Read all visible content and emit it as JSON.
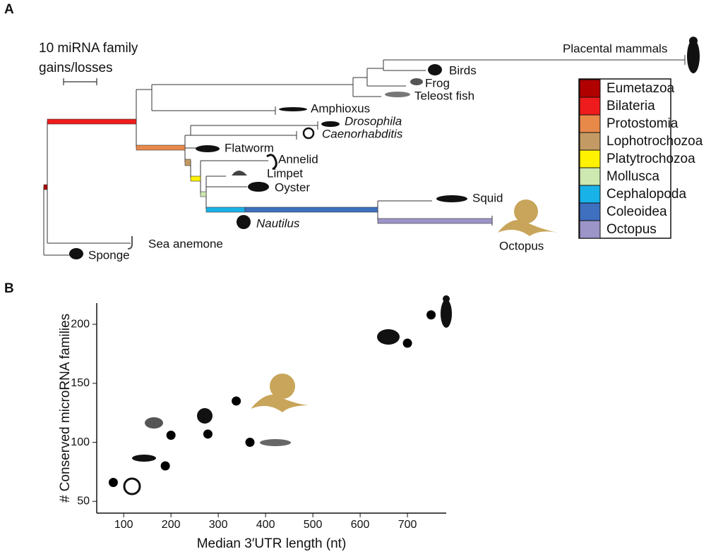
{
  "panel_a": {
    "label": "A",
    "scale_bar": [
      "10 miRNA family",
      "gains/losses"
    ],
    "taxa": [
      "Placental mammals",
      "Birds",
      "Frog",
      "Teleost fish",
      "Amphioxus",
      "Drosophila",
      "Caenorhabditis",
      "Flatworm",
      "Annelid",
      "Limpet",
      "Oyster",
      "Squid",
      "Nautilus",
      "Octopus",
      "Sea anemone",
      "Sponge"
    ],
    "legend": [
      {
        "name": "Eumetazoa",
        "color": "#b00000"
      },
      {
        "name": "Bilateria",
        "color": "#ee1c1c"
      },
      {
        "name": "Protostomia",
        "color": "#e8894a"
      },
      {
        "name": "Lophotrochozoa",
        "color": "#c49a64"
      },
      {
        "name": "Platytrochozoa",
        "color": "#fff200"
      },
      {
        "name": "Mollusca",
        "color": "#cde8b0"
      },
      {
        "name": "Cephalopoda",
        "color": "#19b2e8"
      },
      {
        "name": "Coleoidea",
        "color": "#3f70c0"
      },
      {
        "name": "Octopus",
        "color": "#9c95c8"
      }
    ]
  },
  "chart_data": {
    "type": "scatter",
    "panel_label": "B",
    "xlabel": "Median 3′UTR length (nt)",
    "ylabel": "# Conserved microRNA families",
    "x": [
      78,
      188,
      200,
      278,
      338,
      367,
      700,
      750
    ],
    "values": [
      66,
      80,
      106,
      107,
      135,
      100,
      184,
      208
    ],
    "color": "#000000",
    "xlim": [
      43,
      782
    ],
    "xticks": [
      100,
      200,
      300,
      400,
      500,
      600,
      700
    ],
    "ylim": [
      40,
      218
    ],
    "yticks": [
      50,
      100,
      150,
      200
    ]
  }
}
